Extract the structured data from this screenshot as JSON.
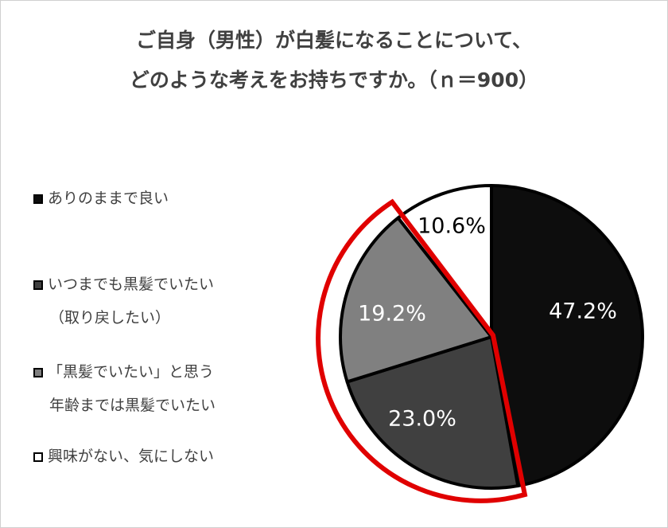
{
  "title": {
    "line1": "ご自身（男性）が白髪になることについて、",
    "line2": "どのような考えをお持ちですか。（ｎ＝900）"
  },
  "chart_data": {
    "type": "pie",
    "start_angle_deg": 0,
    "direction": "clockwise",
    "slices": [
      {
        "legend_lines": [
          "ありのままで良い"
        ],
        "value": 47.2,
        "label": "47.2%",
        "color": "#0d0d0d",
        "text_color": "#ffffff"
      },
      {
        "legend_lines": [
          "いつまでも黒髪でいたい",
          "（取り戻したい）"
        ],
        "value": 23.0,
        "label": "23.0%",
        "color": "#404040",
        "text_color": "#ffffff"
      },
      {
        "legend_lines": [
          "「黒髪でいたい」と思う",
          "年齢までは黒髪でいたい"
        ],
        "value": 19.2,
        "label": "19.2%",
        "color": "#808080",
        "text_color": "#ffffff"
      },
      {
        "legend_lines": [
          "興味がない、気にしない"
        ],
        "value": 10.6,
        "label": "10.6%",
        "color": "#ffffff",
        "text_color": "#000000"
      }
    ],
    "highlight": {
      "slices": [
        1,
        2
      ],
      "color": "#e00000"
    }
  }
}
